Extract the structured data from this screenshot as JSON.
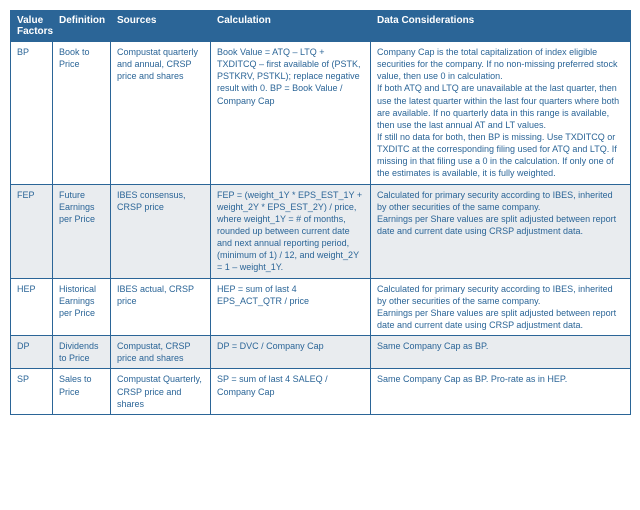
{
  "table": {
    "header_bg": "#2b6597",
    "header_fg": "#ffffff",
    "body_fg": "#2b6597",
    "shade_bg": "#e9ecef",
    "border_color": "#2b6597",
    "columns": [
      "Value Factors",
      "Definition",
      "Sources",
      "Calculation",
      "Data Considerations"
    ],
    "rows": [
      {
        "shaded": false,
        "cells": [
          "BP",
          "Book to Price",
          "Compustat quarterly and annual, CRSP price and shares",
          "Book Value = ATQ – LTQ + TXDITCQ – first available of (PSTK, PSTKRV, PSTKL); replace negative result with 0. BP = Book Value / Company Cap",
          "Company Cap is the total capitalization of index eligible securities for the company. If no non-missing preferred stock value, then use 0 in calculation.\nIf both ATQ and LTQ are unavailable at the last quarter, then use the latest quarter within the last four quarters where both are available.  If no quarterly data in this range is available, then use the last annual AT and LT values.\nIf still no data for both, then BP is missing. Use TXDITCQ or TXDITC at the corresponding filing used for ATQ and LTQ.  If missing in that filing use a 0 in the calculation. If only one of the estimates is available, it is fully weighted."
        ]
      },
      {
        "shaded": true,
        "cells": [
          "FEP",
          "Future Earnings per Price",
          "IBES consensus, CRSP price",
          "FEP = (weight_1Y * EPS_EST_1Y + weight_2Y * EPS_EST_2Y) / price, where weight_1Y = # of months, rounded up between current date and next annual reporting period, (minimum of 1) / 12, and weight_2Y = 1 – weight_1Y.",
          "Calculated for primary security according to IBES, inherited by other securities of the same company.\nEarnings per Share values are split adjusted between report date and current date using CRSP adjustment data."
        ]
      },
      {
        "shaded": false,
        "cells": [
          "HEP",
          "Historical Earnings per  Price",
          "IBES actual, CRSP price",
          "HEP = sum of last 4 EPS_ACT_QTR / price",
          "Calculated for primary security according to IBES, inherited by other securities of the same company.\nEarnings per Share values are split adjusted between report date and current date using CRSP adjustment data."
        ]
      },
      {
        "shaded": true,
        "cells": [
          "DP",
          "Dividends to Price",
          "Compustat, CRSP price and shares",
          "DP = DVC / Company Cap",
          "Same Company Cap as BP."
        ]
      },
      {
        "shaded": false,
        "cells": [
          "SP",
          "Sales to Price",
          "Compustat Quarterly, CRSP price and shares",
          "SP = sum of last 4 SALEQ / Company Cap",
          "Same Company Cap as BP. Pro-rate as in HEP."
        ]
      }
    ]
  }
}
